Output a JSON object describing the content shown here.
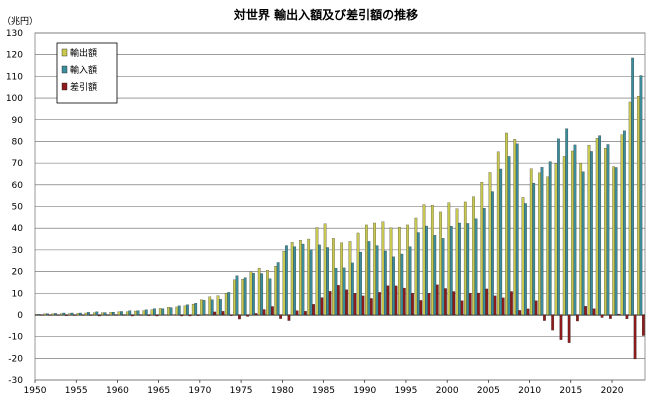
{
  "chart_data": {
    "type": "bar",
    "title": "対世界 輸出入額及び差引額の推移",
    "unit_label": "（兆円）",
    "xlabel": "",
    "ylabel": "",
    "ylim": [
      -30,
      130
    ],
    "yticks": [
      -30,
      -20,
      -10,
      0,
      10,
      20,
      30,
      40,
      50,
      60,
      70,
      80,
      90,
      100,
      110,
      120,
      130
    ],
    "xticks": [
      1950,
      1955,
      1960,
      1965,
      1970,
      1975,
      1980,
      1985,
      1990,
      1995,
      2000,
      2005,
      2010,
      2015,
      2020
    ],
    "grid": true,
    "legend_position": "top-left",
    "categories": [
      1950,
      1951,
      1952,
      1953,
      1954,
      1955,
      1956,
      1957,
      1958,
      1959,
      1960,
      1961,
      1962,
      1963,
      1964,
      1965,
      1966,
      1967,
      1968,
      1969,
      1970,
      1971,
      1972,
      1973,
      1974,
      1975,
      1976,
      1977,
      1978,
      1979,
      1980,
      1981,
      1982,
      1983,
      1984,
      1985,
      1986,
      1987,
      1988,
      1989,
      1990,
      1991,
      1992,
      1993,
      1994,
      1995,
      1996,
      1997,
      1998,
      1999,
      2000,
      2001,
      2002,
      2003,
      2004,
      2005,
      2006,
      2007,
      2008,
      2009,
      2010,
      2011,
      2012,
      2013,
      2014,
      2015,
      2016,
      2017,
      2018,
      2019,
      2020,
      2021,
      2022,
      2023
    ],
    "series": [
      {
        "name": "輸出額",
        "color": "#c8c850",
        "values": [
          0.3,
          0.5,
          0.5,
          0.5,
          0.6,
          0.7,
          0.9,
          1.0,
          1.0,
          1.2,
          1.5,
          1.5,
          1.8,
          2.0,
          2.4,
          3.0,
          3.5,
          3.7,
          4.2,
          5.0,
          7.0,
          8.4,
          8.9,
          10.0,
          16.2,
          16.5,
          19.9,
          21.6,
          20.6,
          22.5,
          29.4,
          33.5,
          34.4,
          35.0,
          40.3,
          42.0,
          35.3,
          33.3,
          33.9,
          37.8,
          41.5,
          42.4,
          43.0,
          40.2,
          40.5,
          41.5,
          44.7,
          50.9,
          50.6,
          47.5,
          51.7,
          49.0,
          52.1,
          54.5,
          61.2,
          65.7,
          75.2,
          83.9,
          81.0,
          54.2,
          67.4,
          65.5,
          63.7,
          69.8,
          73.1,
          75.6,
          70.0,
          78.3,
          81.5,
          76.9,
          68.4,
          83.1,
          98.2,
          100.9
        ]
      },
      {
        "name": "輸入額",
        "color": "#3c8c9c",
        "values": [
          0.3,
          0.6,
          0.7,
          0.9,
          0.9,
          0.9,
          1.2,
          1.5,
          1.1,
          1.3,
          1.6,
          2.0,
          2.0,
          2.4,
          2.9,
          2.9,
          3.4,
          4.2,
          4.7,
          5.4,
          6.8,
          7.0,
          7.2,
          10.4,
          18.1,
          17.2,
          19.2,
          19.1,
          16.7,
          24.2,
          32.0,
          31.5,
          32.7,
          30.1,
          32.3,
          31.1,
          21.6,
          21.7,
          24.0,
          29.0,
          33.9,
          32.0,
          29.5,
          26.8,
          28.1,
          31.5,
          38.0,
          41.0,
          36.7,
          35.3,
          40.9,
          42.4,
          42.2,
          44.4,
          49.2,
          56.9,
          67.3,
          73.1,
          78.9,
          51.4,
          60.8,
          68.1,
          70.7,
          81.2,
          85.9,
          78.4,
          66.0,
          75.4,
          82.7,
          78.6,
          68.0,
          84.9,
          118.5,
          110.4
        ]
      },
      {
        "name": "差引額",
        "color": "#8c1c1c",
        "values": [
          0.0,
          -0.1,
          -0.2,
          -0.4,
          -0.3,
          -0.2,
          -0.3,
          -0.5,
          -0.1,
          -0.1,
          -0.1,
          -0.5,
          -0.2,
          -0.4,
          -0.5,
          0.1,
          0.1,
          -0.5,
          -0.5,
          -0.4,
          0.2,
          1.4,
          1.7,
          -0.4,
          -1.9,
          -0.7,
          0.7,
          2.5,
          3.9,
          -1.7,
          -2.6,
          2.0,
          1.7,
          4.9,
          8.0,
          10.9,
          13.7,
          11.6,
          9.9,
          8.8,
          7.6,
          10.4,
          13.5,
          13.4,
          12.4,
          10.0,
          6.7,
          9.9,
          13.9,
          12.2,
          10.8,
          6.6,
          9.9,
          10.1,
          12.0,
          8.8,
          7.9,
          10.8,
          2.1,
          2.8,
          6.6,
          -2.6,
          -7.0,
          -11.4,
          -12.8,
          -2.8,
          4.0,
          2.9,
          -1.2,
          -1.7,
          0.4,
          -1.8,
          -20.3,
          -9.5
        ]
      }
    ]
  }
}
